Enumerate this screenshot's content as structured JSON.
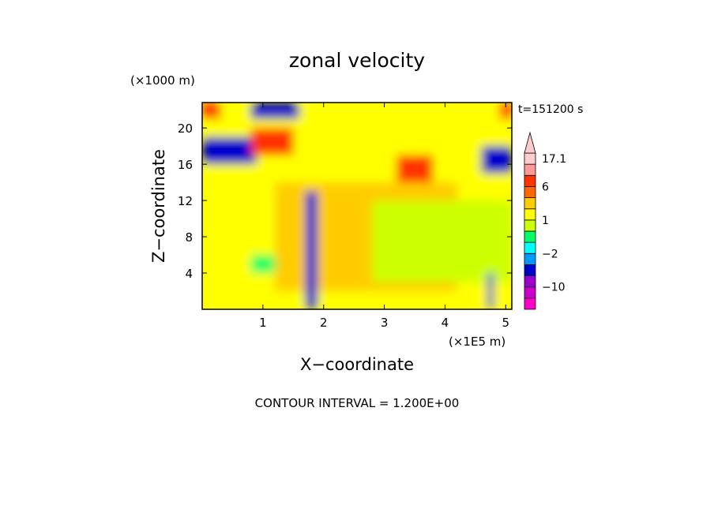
{
  "chart_data": {
    "type": "heatmap",
    "title": "zonal velocity",
    "time_label": "t=151200 s",
    "xlabel": "X−coordinate",
    "ylabel": "Z−coordinate",
    "x_unit": "(×1E5 m)",
    "y_unit": "(×1000 m)",
    "xlim": [
      0,
      5.1
    ],
    "ylim": [
      0,
      22.8
    ],
    "x_ticks": [
      "1",
      "2",
      "3",
      "4",
      "5"
    ],
    "y_ticks": [
      "4",
      "8",
      "12",
      "16",
      "20"
    ],
    "footer": "CONTOUR INTERVAL = 1.200E+00",
    "colorbar": {
      "labels": [
        "17.1",
        "6",
        "1",
        "−2",
        "−10"
      ],
      "label_values": [
        17.1,
        6,
        1,
        -2,
        -10
      ],
      "colors": [
        "#ff00cc",
        "#cc00cc",
        "#9900cc",
        "#0000cc",
        "#0099ff",
        "#00ffff",
        "#00ff66",
        "#ccff00",
        "#ffff00",
        "#ffcc00",
        "#ff6600",
        "#ff3300",
        "#ff9999",
        "#ffcccc"
      ]
    },
    "regions": [
      {
        "x": [
          0,
          5.1
        ],
        "z": [
          0,
          22.8
        ],
        "u": 1
      },
      {
        "x": [
          1.2,
          4.2
        ],
        "z": [
          2,
          14
        ],
        "u": 3
      },
      {
        "x": [
          2.8,
          5.1
        ],
        "z": [
          3,
          12
        ],
        "u": 0.5
      },
      {
        "x": [
          0,
          0.9
        ],
        "z": [
          16,
          19
        ],
        "u": -4
      },
      {
        "x": [
          0.8,
          1.6
        ],
        "z": [
          21,
          22.8
        ],
        "u": -4
      },
      {
        "x": [
          4.6,
          5.1
        ],
        "z": [
          15,
          18
        ],
        "u": -4
      },
      {
        "x": [
          0.8,
          1.5
        ],
        "z": [
          17,
          20
        ],
        "u": 7
      },
      {
        "x": [
          3.2,
          3.8
        ],
        "z": [
          14,
          17
        ],
        "u": 7
      },
      {
        "x": [
          0,
          0.3
        ],
        "z": [
          21,
          22.8
        ],
        "u": 7
      },
      {
        "x": [
          4.9,
          5.1
        ],
        "z": [
          21,
          22.8
        ],
        "u": 7
      },
      {
        "x": [
          1.7,
          1.9
        ],
        "z": [
          0,
          13
        ],
        "u": -6
      },
      {
        "x": [
          4.7,
          4.8
        ],
        "z": [
          0,
          4
        ],
        "u": -6
      },
      {
        "x": [
          0.8,
          1.2
        ],
        "z": [
          4,
          6
        ],
        "u": 0
      }
    ]
  }
}
